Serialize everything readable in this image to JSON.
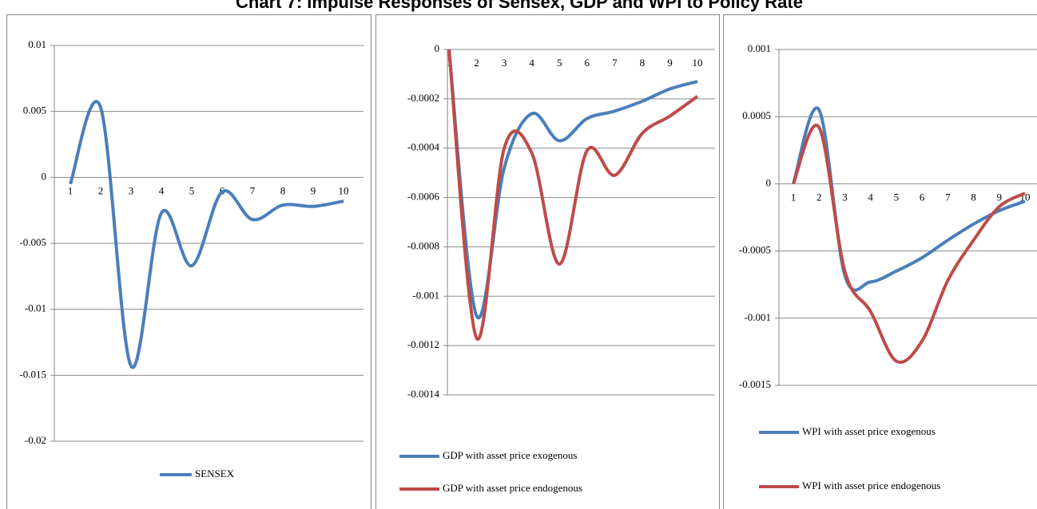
{
  "title": "Chart 7: Impulse Responses of Sensex, GDP and WPI to Policy Rate",
  "chart_data": [
    {
      "type": "line",
      "categories": [
        "1",
        "2",
        "3",
        "4",
        "5",
        "6",
        "7",
        "8",
        "9",
        "10"
      ],
      "ylim": [
        -0.02,
        0.01
      ],
      "yticks": [
        -0.02,
        -0.015,
        -0.01,
        -0.005,
        0,
        0.005,
        0.01
      ],
      "grid": true,
      "series": [
        {
          "name": "SENSEX",
          "color": "#4a7ebb",
          "values": [
            -0.0005,
            0.0053,
            -0.0143,
            -0.0027,
            -0.0067,
            -0.0011,
            -0.0032,
            -0.0021,
            -0.0022,
            -0.0018
          ]
        }
      ]
    },
    {
      "type": "line",
      "categories": [
        "1",
        "2",
        "3",
        "4",
        "5",
        "6",
        "7",
        "8",
        "9",
        "10"
      ],
      "ylim": [
        -0.0014,
        0
      ],
      "yticks": [
        -0.0014,
        -0.0012,
        -0.001,
        -0.0008,
        -0.0006,
        -0.0004,
        -0.0002,
        0
      ],
      "grid": true,
      "series": [
        {
          "name": "GDP with asset price exogenous",
          "color": "#4a7ebb",
          "values": [
            0,
            -0.00108,
            -0.00048,
            -0.00026,
            -0.00037,
            -0.00028,
            -0.00025,
            -0.00021,
            -0.00016,
            -0.00013
          ]
        },
        {
          "name": "GDP with asset price endogenous",
          "color": "#be4b48",
          "values": [
            0,
            -0.00117,
            -0.0004,
            -0.00042,
            -0.00087,
            -0.00041,
            -0.00051,
            -0.00034,
            -0.00027,
            -0.00019
          ]
        }
      ]
    },
    {
      "type": "line",
      "categories": [
        "1",
        "2",
        "3",
        "4",
        "5",
        "6",
        "7",
        "8",
        "9",
        "10"
      ],
      "ylim": [
        -0.0015,
        0.001
      ],
      "yticks": [
        -0.0015,
        -0.001,
        -0.0005,
        0,
        0.0005,
        0.001
      ],
      "grid": true,
      "series": [
        {
          "name": "WPI with asset price exogenous",
          "color": "#4a7ebb",
          "values": [
            0,
            0.00055,
            -0.00068,
            -0.00073,
            -0.00065,
            -0.00055,
            -0.00042,
            -0.0003,
            -0.0002,
            -0.00013
          ]
        },
        {
          "name": "WPI with asset price endogenous",
          "color": "#be4b48",
          "values": [
            0,
            0.00042,
            -0.00065,
            -0.00095,
            -0.00132,
            -0.00117,
            -0.00072,
            -0.00042,
            -0.00017,
            -7e-05
          ]
        }
      ]
    }
  ]
}
